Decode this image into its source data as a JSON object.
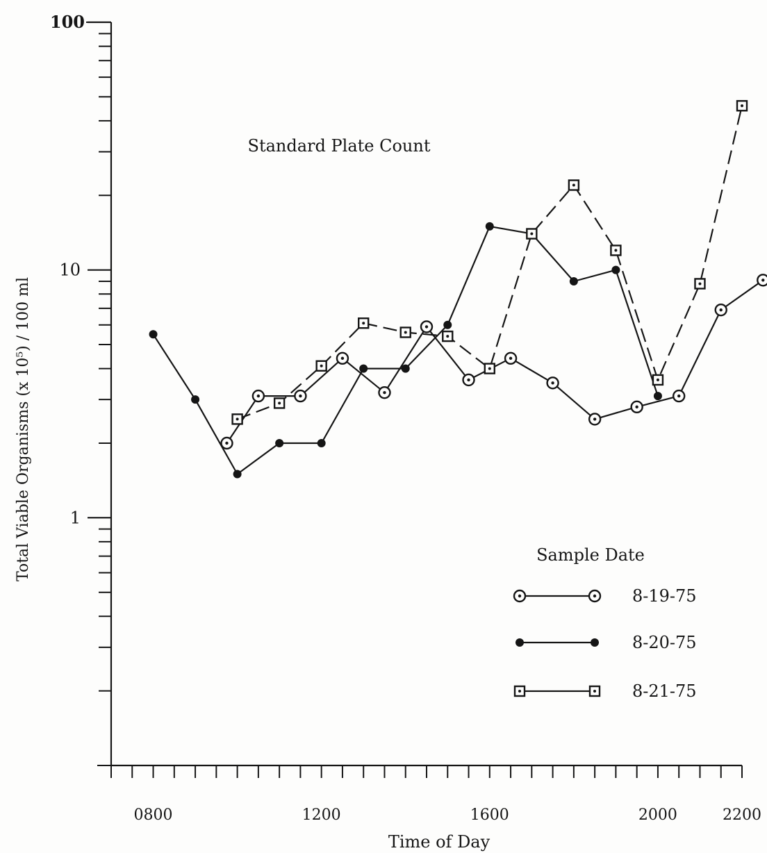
{
  "chart_data": {
    "type": "line",
    "title": "Standard Plate Count",
    "xlabel": "Time of Day",
    "ylabel": "Total Viable Organisms (x 10⁵) / 100 ml",
    "y_scale": "log",
    "xlim": [
      "0700",
      "2200"
    ],
    "ylim": [
      0.1,
      100
    ],
    "x_ticks": [
      "0800",
      "1200",
      "1600",
      "2000",
      "2200"
    ],
    "y_ticks": [
      "1",
      "10",
      "100"
    ],
    "legend_title": "Sample Date",
    "legend_position": "bottom-right",
    "series": [
      {
        "name": "8-19-75",
        "marker": "circle-dot",
        "line": "solid",
        "x": [
          "0945",
          "1030",
          "1130",
          "1230",
          "1330",
          "1430",
          "1530",
          "1630",
          "1730",
          "1830",
          "1930",
          "2030",
          "2130",
          "2230"
        ],
        "y": [
          2.0,
          3.1,
          3.1,
          4.4,
          3.2,
          5.9,
          3.6,
          4.4,
          3.5,
          2.5,
          2.8,
          3.1,
          6.9,
          9.1
        ]
      },
      {
        "name": "8-20-75",
        "marker": "filled-circle",
        "line": "solid",
        "x": [
          "0800",
          "0900",
          "1000",
          "1100",
          "1200",
          "1300",
          "1400",
          "1500",
          "1600",
          "1700",
          "1800",
          "1900",
          "2000"
        ],
        "y": [
          5.5,
          3.0,
          1.5,
          2.0,
          2.0,
          4.0,
          4.0,
          6.0,
          15,
          14,
          9.0,
          10,
          3.1
        ]
      },
      {
        "name": "8-21-75",
        "marker": "square-dot",
        "line": "dashed",
        "x": [
          "1000",
          "1100",
          "1200",
          "1300",
          "1400",
          "1500",
          "1600",
          "1700",
          "1800",
          "1900",
          "2000",
          "2100",
          "2200"
        ],
        "y": [
          2.5,
          2.9,
          4.1,
          6.1,
          5.6,
          5.4,
          4.0,
          14,
          22,
          12,
          3.6,
          8.8,
          46
        ]
      }
    ]
  },
  "colors": {
    "ink": "#151515",
    "paper": "#fdfdfc"
  }
}
